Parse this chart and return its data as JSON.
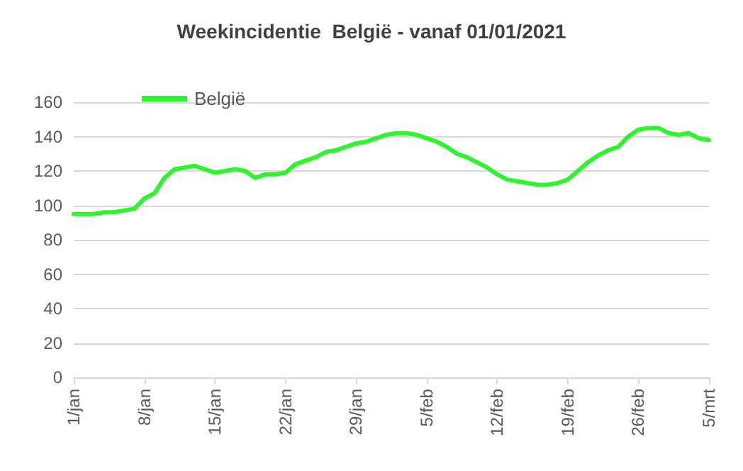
{
  "chart_data": {
    "type": "line",
    "title": "Weekincidentie  België - vanaf 01/01/2021",
    "categories": [
      "1/jan",
      null,
      null,
      null,
      null,
      null,
      null,
      "8/jan",
      null,
      null,
      null,
      null,
      null,
      null,
      "15/jan",
      null,
      null,
      null,
      null,
      null,
      null,
      "22/jan",
      null,
      null,
      null,
      null,
      null,
      null,
      "29/jan",
      null,
      null,
      null,
      null,
      null,
      null,
      "5/feb",
      null,
      null,
      null,
      null,
      null,
      null,
      "12/feb",
      null,
      null,
      null,
      null,
      null,
      null,
      "19/feb",
      null,
      null,
      null,
      null,
      null,
      null,
      "26/feb",
      null,
      null,
      null,
      null,
      null,
      null,
      "5/mrt"
    ],
    "series": [
      {
        "name": "België",
        "color": "#2cf52c",
        "values": [
          95,
          95,
          95,
          96,
          96,
          97,
          98,
          104,
          107,
          116,
          121,
          122,
          123,
          121,
          119,
          120,
          121,
          120,
          116,
          118,
          118,
          119,
          124,
          126,
          128,
          131,
          132,
          134,
          136,
          137,
          139,
          141,
          142,
          142,
          141,
          139,
          137,
          134,
          130,
          128,
          125,
          122,
          118,
          115,
          114,
          113,
          112,
          112,
          113,
          115,
          120,
          125,
          129,
          132,
          134,
          140,
          144,
          145,
          145,
          142,
          141,
          142,
          139,
          138
        ]
      }
    ],
    "ylim": [
      0,
      160
    ],
    "yticks": [
      0,
      20,
      40,
      60,
      80,
      100,
      120,
      140,
      160
    ],
    "grid": "y",
    "legend": "top left",
    "marker": "none",
    "line_style": "solid"
  }
}
